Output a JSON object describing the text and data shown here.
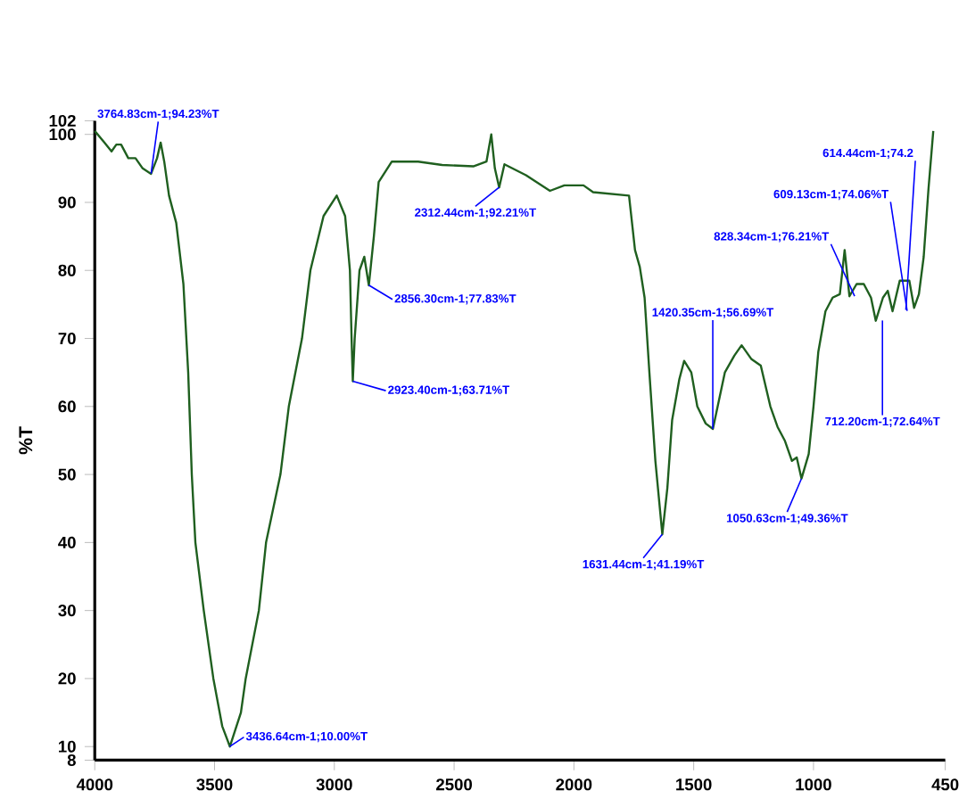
{
  "chart_data": {
    "type": "line",
    "ylabel": "%T",
    "color": "#1f5f1f",
    "x": [
      4000,
      3960,
      3930,
      3910,
      3890,
      3860,
      3830,
      3800,
      3765,
      3740,
      3725,
      3710,
      3690,
      3660,
      3630,
      3610,
      3595,
      3580,
      3545,
      3505,
      3468,
      3436,
      3390,
      3370,
      3315,
      3285,
      3225,
      3190,
      3135,
      3100,
      3045,
      2990,
      2955,
      2935,
      2928,
      2923,
      2915,
      2895,
      2875,
      2856,
      2835,
      2815,
      2760,
      2650,
      2550,
      2420,
      2365,
      2345,
      2330,
      2312,
      2290,
      2200,
      2100,
      2040,
      1960,
      1920,
      1770,
      1745,
      1725,
      1705,
      1685,
      1660,
      1631,
      1610,
      1590,
      1560,
      1540,
      1510,
      1485,
      1450,
      1420,
      1400,
      1370,
      1330,
      1300,
      1260,
      1220,
      1180,
      1150,
      1120,
      1090,
      1070,
      1050,
      1020,
      1000,
      980,
      950,
      920,
      890,
      870,
      850,
      820,
      790,
      760,
      740,
      710,
      690,
      670,
      640,
      600,
      580,
      560,
      540,
      520,
      500
    ],
    "values": [
      100.5,
      98.8,
      97.5,
      98.5,
      98.5,
      96.5,
      96.5,
      95,
      94.2,
      96.5,
      98.8,
      96,
      91,
      87,
      78,
      65,
      50,
      40,
      30,
      20,
      13,
      10,
      15,
      20,
      30,
      40,
      50,
      60,
      70,
      80,
      88,
      91,
      88,
      80,
      70,
      63.7,
      70,
      80,
      82,
      77.8,
      85,
      93,
      96,
      96,
      95.5,
      95.3,
      96,
      100,
      95,
      92.2,
      95.6,
      94,
      91.7,
      92.5,
      92.5,
      91.5,
      91,
      83,
      80.5,
      76,
      65,
      52,
      41.2,
      48,
      58,
      64,
      66.7,
      65,
      60,
      57.5,
      56.7,
      60,
      65,
      67.5,
      69,
      67,
      66,
      60,
      57,
      55,
      52,
      52.5,
      49.4,
      53,
      60,
      68,
      74,
      76,
      76.5,
      83,
      76.2,
      78,
      78,
      76,
      72.6,
      76,
      77,
      74,
      78.5,
      78.5,
      74.5,
      76.5,
      82,
      92,
      100.5
    ],
    "xlim": [
      4000,
      450
    ],
    "ylim": [
      8,
      102
    ],
    "xticks": [
      4000,
      3500,
      3000,
      2500,
      2000,
      1500,
      1000,
      450
    ],
    "yticks": [
      8,
      10,
      20,
      30,
      40,
      50,
      60,
      70,
      80,
      90,
      100,
      102
    ],
    "annotations": [
      {
        "text": "3764.83cm-1;94.23%T",
        "x": 3764.83,
        "y": 94.23
      },
      {
        "text": "2856.30cm-1;77.83%T",
        "x": 2856.3,
        "y": 77.83
      },
      {
        "text": "2923.40cm-1;63.71%T",
        "x": 2923.4,
        "y": 63.71
      },
      {
        "text": "2312.44cm-1;92.21%T",
        "x": 2312.44,
        "y": 92.21
      },
      {
        "text": "1631.44cm-1;41.19%T",
        "x": 1631.44,
        "y": 41.19
      },
      {
        "text": "1420.35cm-1;56.69%T",
        "x": 1420.35,
        "y": 56.69
      },
      {
        "text": "1050.63cm-1;49.36%T",
        "x": 1050.63,
        "y": 49.36
      },
      {
        "text": "828.34cm-1;76.21%T",
        "x": 828.34,
        "y": 76.21
      },
      {
        "text": "609.13cm-1;74.06%T",
        "x": 609.13,
        "y": 74.06
      },
      {
        "text": "712.20cm-1;72.64%T",
        "x": 712.2,
        "y": 72.64
      },
      {
        "text": "614.44cm-1;74.2",
        "x": 614.44,
        "y": 74.2
      },
      {
        "text": "3436.64cm-1;10.00%T",
        "x": 3436.64,
        "y": 10.0
      }
    ]
  }
}
